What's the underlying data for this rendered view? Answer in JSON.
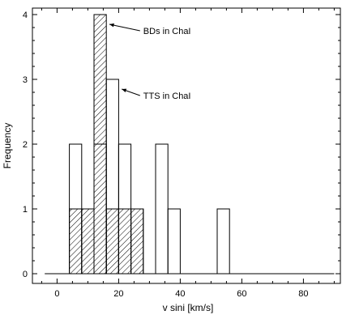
{
  "chart_data": {
    "type": "bar",
    "xlabel": "v sini [km/s]",
    "ylabel": "Frequency",
    "xlim": [
      -8,
      92
    ],
    "ylim": [
      -0.15,
      4.1
    ],
    "x_ticks": [
      0,
      20,
      40,
      60,
      80
    ],
    "y_ticks": [
      0,
      1,
      2,
      3,
      4
    ],
    "bin_width": 4,
    "grid": false,
    "series": [
      {
        "name": "TTS in ChaI",
        "style": "open",
        "bins": [
          {
            "x_start": 4,
            "x_end": 8,
            "count": 2
          },
          {
            "x_start": 8,
            "x_end": 12,
            "count": 0
          },
          {
            "x_start": 12,
            "x_end": 16,
            "count": 2
          },
          {
            "x_start": 16,
            "x_end": 20,
            "count": 3
          },
          {
            "x_start": 20,
            "x_end": 24,
            "count": 2
          },
          {
            "x_start": 24,
            "x_end": 28,
            "count": 1
          },
          {
            "x_start": 28,
            "x_end": 32,
            "count": 0
          },
          {
            "x_start": 32,
            "x_end": 36,
            "count": 2
          },
          {
            "x_start": 36,
            "x_end": 40,
            "count": 1
          },
          {
            "x_start": 40,
            "x_end": 44,
            "count": 0
          },
          {
            "x_start": 44,
            "x_end": 48,
            "count": 0
          },
          {
            "x_start": 48,
            "x_end": 52,
            "count": 0
          },
          {
            "x_start": 52,
            "x_end": 56,
            "count": 1
          }
        ]
      },
      {
        "name": "BDs in ChaI",
        "style": "hatched",
        "bins": [
          {
            "x_start": 4,
            "x_end": 8,
            "count": 1
          },
          {
            "x_start": 8,
            "x_end": 12,
            "count": 1
          },
          {
            "x_start": 12,
            "x_end": 16,
            "count": 4
          },
          {
            "x_start": 16,
            "x_end": 20,
            "count": 1
          },
          {
            "x_start": 20,
            "x_end": 24,
            "count": 1
          },
          {
            "x_start": 24,
            "x_end": 28,
            "count": 1
          }
        ]
      }
    ],
    "annotations": [
      {
        "text": "BDs in ChaI",
        "x": 28,
        "y": 3.75,
        "arrow_to_x": 17,
        "arrow_to_y": 3.85
      },
      {
        "text": "TTS in ChaI",
        "x": 28,
        "y": 2.75,
        "arrow_to_x": 21,
        "arrow_to_y": 2.85
      }
    ]
  }
}
